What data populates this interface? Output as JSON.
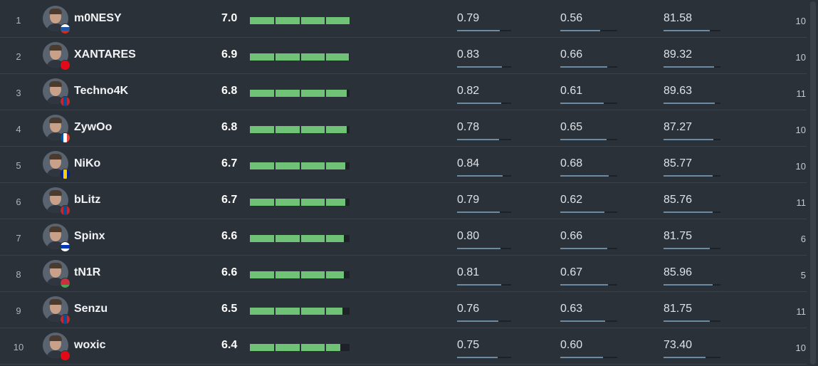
{
  "colors": {
    "rating_bar": "#6fc276",
    "stat_bar": "#6d8aa3",
    "background": "#2b3139"
  },
  "players": [
    {
      "rank": "1",
      "name": "m0NESY",
      "rating": "7.0",
      "rating_level": 1.0,
      "stat1": "0.79",
      "stat2": "0.56",
      "stat3": "81.58",
      "maps": "10",
      "flag": "russia-flag",
      "flag_colors": [
        "#ffffff",
        "#1c57a5",
        "#d52b1e"
      ],
      "flag_dir": "h"
    },
    {
      "rank": "2",
      "name": "XANTARES",
      "rating": "6.9",
      "rating_level": 0.99,
      "stat1": "0.83",
      "stat2": "0.66",
      "stat3": "89.32",
      "maps": "10",
      "flag": "turkey-flag",
      "flag_colors": [
        "#e30a17",
        "#e30a17",
        "#e30a17"
      ],
      "flag_dir": "h"
    },
    {
      "rank": "3",
      "name": "Techno4K",
      "rating": "6.8",
      "rating_level": 0.97,
      "stat1": "0.82",
      "stat2": "0.61",
      "stat3": "89.63",
      "maps": "11",
      "flag": "mongolia-flag",
      "flag_colors": [
        "#c4272f",
        "#015197",
        "#c4272f"
      ],
      "flag_dir": "v"
    },
    {
      "rank": "4",
      "name": "ZywOo",
      "rating": "6.8",
      "rating_level": 0.97,
      "stat1": "0.78",
      "stat2": "0.65",
      "stat3": "87.27",
      "maps": "10",
      "flag": "france-flag",
      "flag_colors": [
        "#0055a4",
        "#ffffff",
        "#ef4135"
      ],
      "flag_dir": "v"
    },
    {
      "rank": "5",
      "name": "NiKo",
      "rating": "6.7",
      "rating_level": 0.96,
      "stat1": "0.84",
      "stat2": "0.68",
      "stat3": "85.77",
      "maps": "10",
      "flag": "bosnia-flag",
      "flag_colors": [
        "#002395",
        "#fecb00",
        "#002395"
      ],
      "flag_dir": "v"
    },
    {
      "rank": "6",
      "name": "bLitz",
      "rating": "6.7",
      "rating_level": 0.96,
      "stat1": "0.79",
      "stat2": "0.62",
      "stat3": "85.76",
      "maps": "11",
      "flag": "mongolia-flag",
      "flag_colors": [
        "#c4272f",
        "#015197",
        "#c4272f"
      ],
      "flag_dir": "v"
    },
    {
      "rank": "7",
      "name": "Spinx",
      "rating": "6.6",
      "rating_level": 0.94,
      "stat1": "0.80",
      "stat2": "0.66",
      "stat3": "81.75",
      "maps": "6",
      "flag": "israel-flag",
      "flag_colors": [
        "#ffffff",
        "#0038b8",
        "#ffffff"
      ],
      "flag_dir": "h"
    },
    {
      "rank": "8",
      "name": "tN1R",
      "rating": "6.6",
      "rating_level": 0.94,
      "stat1": "0.81",
      "stat2": "0.67",
      "stat3": "85.96",
      "maps": "5",
      "flag": "belarus-flag",
      "flag_colors": [
        "#c8313e",
        "#c8313e",
        "#4aa657"
      ],
      "flag_dir": "h"
    },
    {
      "rank": "9",
      "name": "Senzu",
      "rating": "6.5",
      "rating_level": 0.93,
      "stat1": "0.76",
      "stat2": "0.63",
      "stat3": "81.75",
      "maps": "11",
      "flag": "mongolia-flag",
      "flag_colors": [
        "#c4272f",
        "#015197",
        "#c4272f"
      ],
      "flag_dir": "v"
    },
    {
      "rank": "10",
      "name": "woxic",
      "rating": "6.4",
      "rating_level": 0.91,
      "stat1": "0.75",
      "stat2": "0.60",
      "stat3": "73.40",
      "maps": "10",
      "flag": "turkey-flag",
      "flag_colors": [
        "#e30a17",
        "#e30a17",
        "#e30a17"
      ],
      "flag_dir": "h"
    }
  ]
}
